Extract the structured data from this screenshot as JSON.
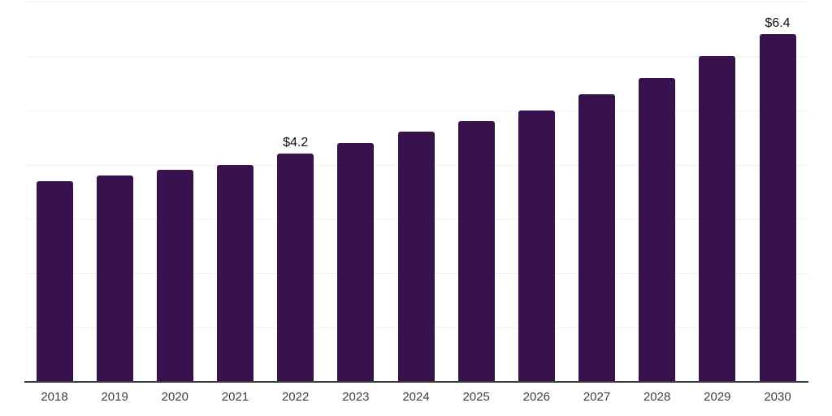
{
  "chart_data": {
    "type": "bar",
    "title": "",
    "xlabel": "",
    "ylabel": "",
    "categories": [
      "2018",
      "2019",
      "2020",
      "2021",
      "2022",
      "2023",
      "2024",
      "2025",
      "2026",
      "2027",
      "2028",
      "2029",
      "2030"
    ],
    "values": [
      3.7,
      3.8,
      3.9,
      4.0,
      4.2,
      4.4,
      4.6,
      4.8,
      5.0,
      5.3,
      5.6,
      6.0,
      6.4
    ],
    "bar_labels": [
      null,
      null,
      null,
      null,
      "$4.2",
      null,
      null,
      null,
      null,
      null,
      null,
      null,
      "$6.4"
    ],
    "ylim": [
      0,
      7
    ],
    "gridline_interval": 1,
    "grid": "horizontal-only",
    "legend": {
      "show": false
    },
    "colors": {
      "bar": "#37124d",
      "gridline": "#f2f2f4",
      "axis_line": "#3a3a3a",
      "tick_label": "#3d3d3d",
      "data_label": "#0f0f0f",
      "background": "#ffffff"
    }
  }
}
